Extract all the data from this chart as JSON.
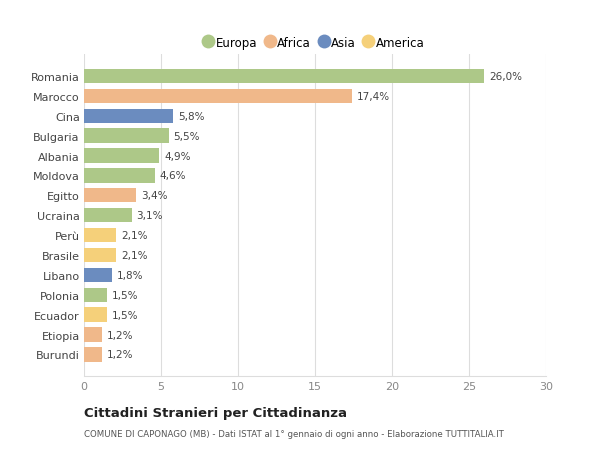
{
  "countries": [
    "Romania",
    "Marocco",
    "Cina",
    "Bulgaria",
    "Albania",
    "Moldova",
    "Egitto",
    "Ucraina",
    "Perù",
    "Brasile",
    "Libano",
    "Polonia",
    "Ecuador",
    "Etiopia",
    "Burundi"
  ],
  "values": [
    26.0,
    17.4,
    5.8,
    5.5,
    4.9,
    4.6,
    3.4,
    3.1,
    2.1,
    2.1,
    1.8,
    1.5,
    1.5,
    1.2,
    1.2
  ],
  "labels": [
    "26,0%",
    "17,4%",
    "5,8%",
    "5,5%",
    "4,9%",
    "4,6%",
    "3,4%",
    "3,1%",
    "2,1%",
    "2,1%",
    "1,8%",
    "1,5%",
    "1,5%",
    "1,2%",
    "1,2%"
  ],
  "colors": [
    "#adc888",
    "#f0b88a",
    "#6b8cbf",
    "#adc888",
    "#adc888",
    "#adc888",
    "#f0b88a",
    "#adc888",
    "#f5d07a",
    "#f5d07a",
    "#6b8cbf",
    "#adc888",
    "#f5d07a",
    "#f0b88a",
    "#f0b88a"
  ],
  "legend": [
    {
      "label": "Europa",
      "color": "#adc888"
    },
    {
      "label": "Africa",
      "color": "#f0b88a"
    },
    {
      "label": "Asia",
      "color": "#6b8cbf"
    },
    {
      "label": "America",
      "color": "#f5d07a"
    }
  ],
  "title": "Cittadini Stranieri per Cittadinanza",
  "subtitle": "COMUNE DI CAPONAGO (MB) - Dati ISTAT al 1° gennaio di ogni anno - Elaborazione TUTTITALIA.IT",
  "xlim": [
    0,
    30
  ],
  "xticks": [
    0,
    5,
    10,
    15,
    20,
    25,
    30
  ],
  "background_color": "#ffffff",
  "grid_color": "#dddddd"
}
